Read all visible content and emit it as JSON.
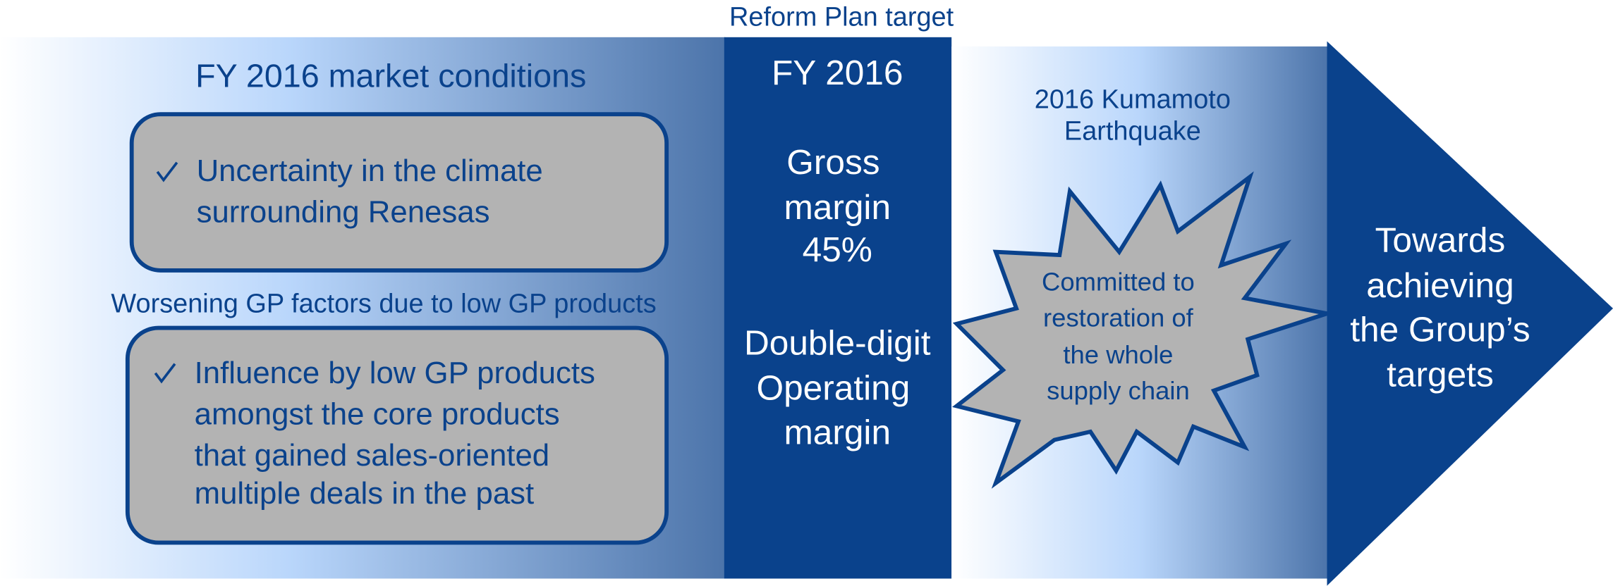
{
  "top_label": "Reform Plan target",
  "market": {
    "title": "FY 2016 market conditions",
    "box1": [
      "Uncertainty in the climate",
      "surrounding Renesas"
    ],
    "subheading": "Worsening GP factors due to low GP products",
    "box2": [
      "Influence by low GP products",
      "amongst the core products",
      "that gained sales-oriented",
      "multiple deals in the past"
    ]
  },
  "target": {
    "title": "FY 2016",
    "gross": [
      "Gross",
      "margin",
      "45%"
    ],
    "operating": [
      "Double-digit",
      "Operating",
      "margin"
    ]
  },
  "earthquake": {
    "title": [
      "2016 Kumamoto",
      "Earthquake"
    ],
    "burst": [
      "Committed to",
      "restoration of",
      "the whole",
      "supply chain"
    ]
  },
  "arrow": [
    "Towards",
    "achieving",
    "the Group’s",
    "targets"
  ]
}
